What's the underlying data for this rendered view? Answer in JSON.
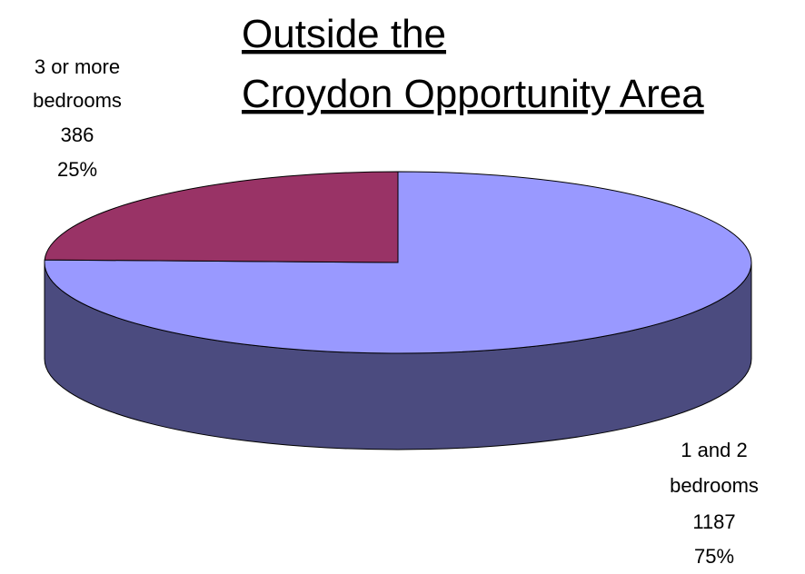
{
  "chart_data": {
    "type": "pie",
    "style": "3d",
    "title": [
      "Outside the",
      "Croydon Opportunity Area"
    ],
    "slices": [
      {
        "label": [
          "1 and 2",
          "bedrooms"
        ],
        "value": 1187,
        "percent": "75%",
        "top_color": "#9999ff",
        "side_color": "#4b4b7f"
      },
      {
        "label": [
          "3 or more",
          "bedrooms"
        ],
        "value": 386,
        "percent": "25%",
        "top_color": "#993366",
        "side_color": "#4c1933"
      }
    ],
    "legend": "none"
  }
}
